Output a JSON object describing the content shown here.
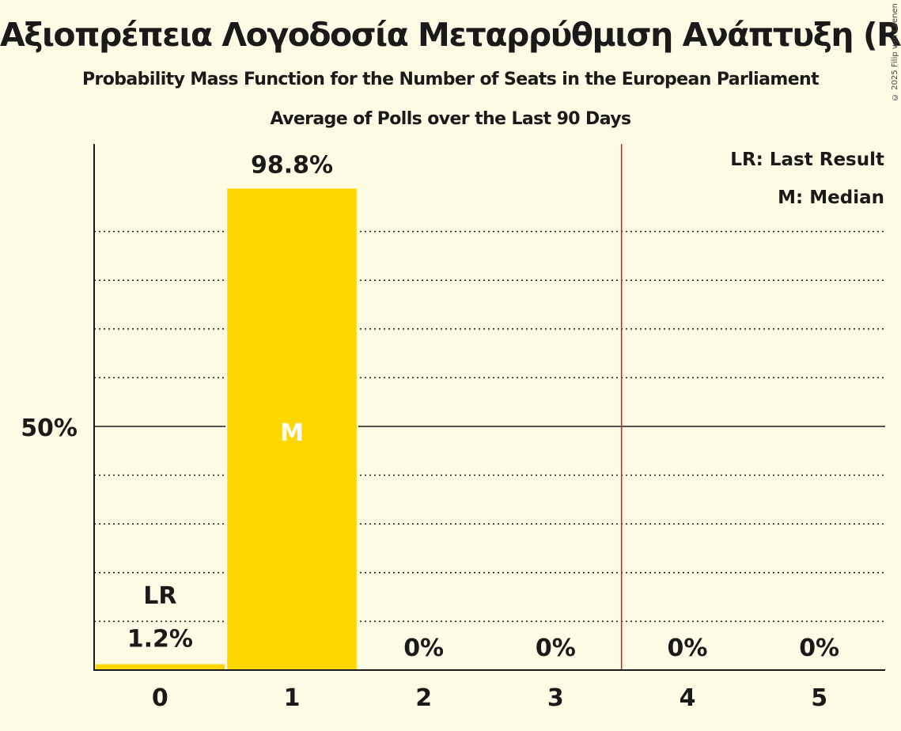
{
  "header": {
    "title": "Αξιοπρέπεια Λογοδοσία Μεταρρύθμιση Ανάπτυξη (RE)",
    "subtitle": "Probability Mass Function for the Number of Seats in the European Parliament",
    "subtitle2": "Average of Polls over the Last 90 Days",
    "copyright": "© 2025 Filip van Laenen"
  },
  "legend": {
    "lr": "LR: Last Result",
    "m": "M: Median"
  },
  "colors": {
    "bar": "#ffd700",
    "background": "#fefbe4",
    "threshold_line": "#e0161b",
    "axis": "#1a1a1a"
  },
  "chart_data": {
    "type": "bar",
    "title": "Αξιοπρέπεια Λογοδοσία Μεταρρύθμιση Ανάπτυξη (RE)",
    "subtitle": "Probability Mass Function for the Number of Seats in the European Parliament — Average of Polls over the Last 90 Days",
    "xlabel": "",
    "ylabel": "",
    "categories": [
      "0",
      "1",
      "2",
      "3",
      "4",
      "5"
    ],
    "values": [
      1.2,
      98.8,
      0,
      0,
      0,
      0
    ],
    "value_labels": [
      "1.2%",
      "98.8%",
      "0%",
      "0%",
      "0%",
      "0%"
    ],
    "ylim": [
      0,
      100
    ],
    "y_tick_labels": [
      {
        "value": 50,
        "label": "50%"
      }
    ],
    "grid": {
      "dotted_every": 10,
      "solid_at": 50
    },
    "annotations": [
      {
        "category": "0",
        "text": "LR",
        "meaning": "Last Result"
      },
      {
        "category": "1",
        "text": "M",
        "meaning": "Median"
      }
    ],
    "threshold_line": {
      "x_between": [
        "3",
        "4"
      ],
      "color": "#e0161b"
    },
    "legend": [
      "LR: Last Result",
      "M: Median"
    ]
  }
}
